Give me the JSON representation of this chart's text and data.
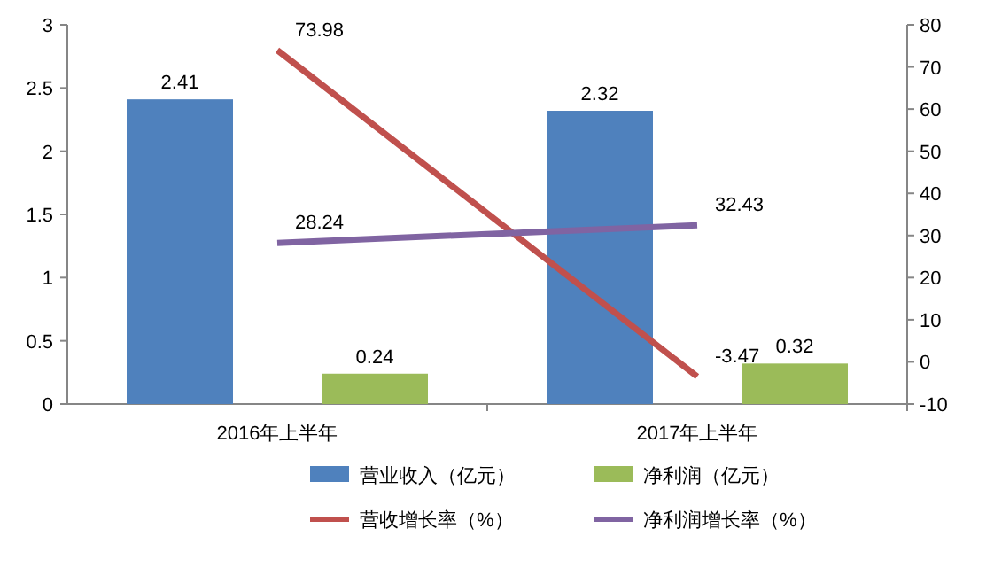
{
  "chart_data": {
    "type": "bar",
    "categories": [
      "2016年上半年",
      "2017年上半年"
    ],
    "series": [
      {
        "name": "营业收入（亿元）",
        "color": "#4f81bd",
        "values": [
          2.41,
          2.32
        ]
      },
      {
        "name": "净利润（亿元）",
        "color": "#9bbb59",
        "values": [
          0.24,
          0.32
        ]
      },
      {
        "name": "营收增长率（%）",
        "color": "#c0504d",
        "values": [
          73.98,
          -3.47
        ],
        "type": "line",
        "axis": "y2"
      },
      {
        "name": "净利润增长率（%）",
        "color": "#8064a2",
        "values": [
          28.24,
          32.43
        ],
        "type": "line",
        "axis": "y2"
      }
    ],
    "ylim": [
      0,
      3
    ],
    "yticks": [
      0,
      0.5,
      1,
      1.5,
      2,
      2.5,
      3
    ],
    "y2lim": [
      -10,
      80
    ],
    "y2ticks": [
      -10,
      0,
      10,
      20,
      30,
      40,
      50,
      60,
      70,
      80
    ],
    "data_labels": true,
    "legend": "bottom",
    "grid": false,
    "marker": "none",
    "line_style": "solid"
  }
}
